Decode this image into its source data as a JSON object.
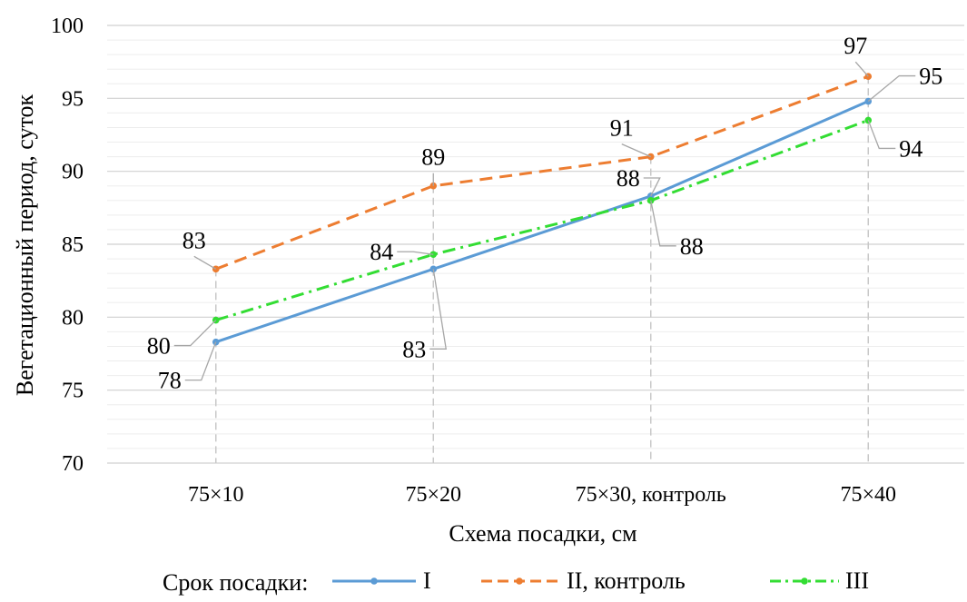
{
  "chart_data": {
    "type": "line",
    "categories": [
      "75×10",
      "75×20",
      "75×30, контроль",
      "75×40"
    ],
    "series": [
      {
        "name": "I",
        "values": [
          78.3,
          83.3,
          88.3,
          94.8
        ],
        "labels": [
          "78",
          "83",
          "88",
          "95"
        ],
        "color": "#5B9BD5",
        "style": "solid"
      },
      {
        "name": "II, контроль",
        "values": [
          83.3,
          89.0,
          91.0,
          96.5
        ],
        "labels": [
          "83",
          "89",
          "91",
          "97"
        ],
        "color": "#ED7D31",
        "style": "dash"
      },
      {
        "name": "III",
        "values": [
          79.8,
          84.3,
          88.0,
          93.5
        ],
        "labels": [
          "80",
          "84",
          "88",
          "94"
        ],
        "color": "#33DD33",
        "style": "dashdot"
      }
    ],
    "xlabel": "Схема посадки, см",
    "ylabel": "Вегетационный период, суток",
    "ylim": [
      70,
      100
    ],
    "yticks": [
      "70",
      "75",
      "80",
      "85",
      "90",
      "95",
      "100"
    ],
    "grid": "major and minor horizontal",
    "legend": {
      "title": "Срок посадки:",
      "position": "bottom"
    }
  }
}
